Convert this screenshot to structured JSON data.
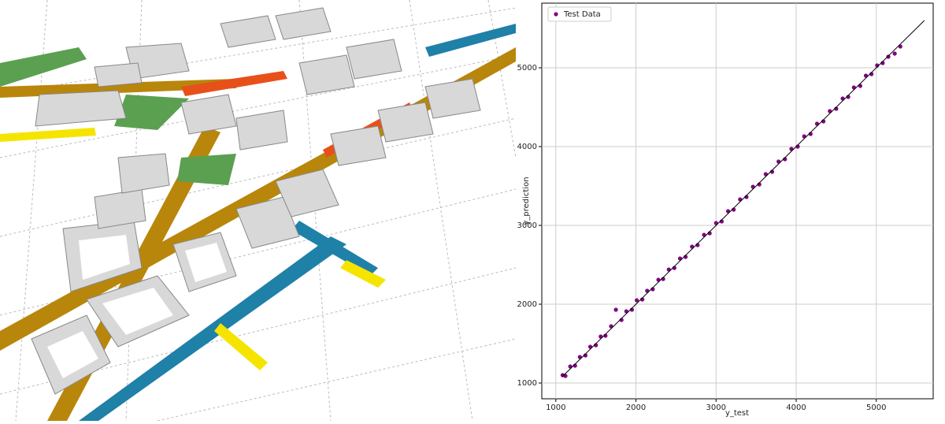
{
  "chart_data": {
    "type": "scatter",
    "xlabel": "y_test",
    "ylabel": "y_prediction",
    "xlim": [
      825,
      5710
    ],
    "ylim": [
      800,
      5820
    ],
    "xticks": [
      1000,
      2000,
      3000,
      4000,
      5000
    ],
    "yticks": [
      1000,
      2000,
      3000,
      4000,
      5000
    ],
    "grid": true,
    "legend": "upper left",
    "series": [
      {
        "name": "Test Data",
        "color": "#800080",
        "x": [
          1085,
          1120,
          1180,
          1240,
          1300,
          1370,
          1430,
          1500,
          1560,
          1620,
          1690,
          1750,
          1820,
          1880,
          1950,
          2010,
          2080,
          2140,
          2210,
          2280,
          2340,
          2410,
          2480,
          2550,
          2620,
          2700,
          2770,
          2850,
          2920,
          3000,
          3070,
          3150,
          3220,
          3300,
          3380,
          3460,
          3540,
          3620,
          3700,
          3780,
          3860,
          3940,
          4020,
          4100,
          4180,
          4260,
          4340,
          4420,
          4500,
          4580,
          4650,
          4720,
          4800,
          4870,
          4940,
          5010,
          5080,
          5150,
          5230,
          5300
        ],
        "values": [
          1100,
          1090,
          1210,
          1220,
          1330,
          1350,
          1460,
          1480,
          1590,
          1600,
          1720,
          1930,
          1800,
          1910,
          1930,
          2050,
          2060,
          2170,
          2190,
          2310,
          2320,
          2440,
          2460,
          2580,
          2600,
          2730,
          2750,
          2880,
          2900,
          3030,
          3050,
          3180,
          3200,
          3330,
          3360,
          3490,
          3520,
          3650,
          3680,
          3810,
          3840,
          3970,
          4000,
          4130,
          4160,
          4290,
          4320,
          4450,
          4480,
          4610,
          4630,
          4750,
          4770,
          4900,
          4920,
          5030,
          5060,
          5140,
          5180,
          5270
        ]
      }
    ],
    "reference_line": {
      "color": "#000000",
      "x": [
        1080,
        5600
      ],
      "values": [
        1080,
        5600
      ]
    }
  }
}
